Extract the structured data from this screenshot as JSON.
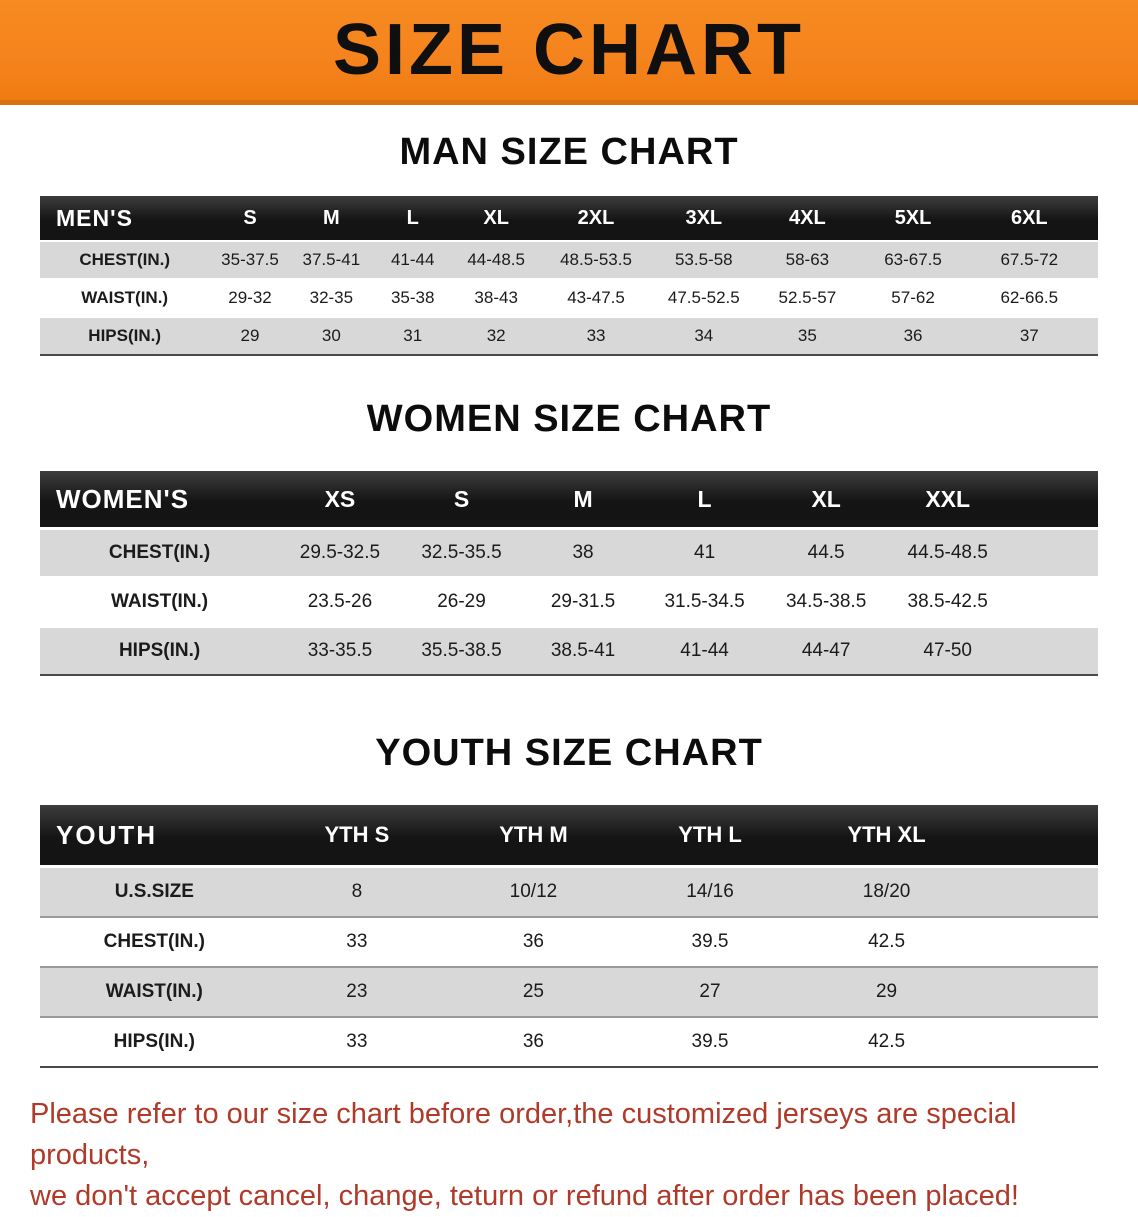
{
  "banner": {
    "title": "SIZE CHART"
  },
  "chart_data": [
    {
      "type": "table",
      "title": "MAN SIZE CHART",
      "columns": [
        "MEN'S",
        "S",
        "M",
        "L",
        "XL",
        "2XL",
        "3XL",
        "4XL",
        "5XL",
        "6XL"
      ],
      "rows": [
        [
          "CHEST(IN.)",
          "35-37.5",
          "37.5-41",
          "41-44",
          "44-48.5",
          "48.5-53.5",
          "53.5-58",
          "58-63",
          "63-67.5",
          "67.5-72"
        ],
        [
          "WAIST(IN.)",
          "29-32",
          "32-35",
          "35-38",
          "38-43",
          "43-47.5",
          "47.5-52.5",
          "52.5-57",
          "57-62",
          "62-66.5"
        ],
        [
          "HIPS(IN.)",
          "29",
          "30",
          "31",
          "32",
          "33",
          "34",
          "35",
          "36",
          "37"
        ]
      ],
      "filler": true
    },
    {
      "type": "table",
      "title": "WOMEN SIZE CHART",
      "columns": [
        "WOMEN'S",
        "XS",
        "S",
        "M",
        "L",
        "XL",
        "XXL"
      ],
      "rows": [
        [
          "CHEST(IN.)",
          "29.5-32.5",
          "32.5-35.5",
          "38",
          "41",
          "44.5",
          "44.5-48.5"
        ],
        [
          "WAIST(IN.)",
          "23.5-26",
          "26-29",
          "29-31.5",
          "31.5-34.5",
          "34.5-38.5",
          "38.5-42.5"
        ],
        [
          "HIPS(IN.)",
          "33-35.5",
          "35.5-38.5",
          "38.5-41",
          "41-44",
          "44-47",
          "47-50"
        ]
      ],
      "filler": true
    },
    {
      "type": "table",
      "title": "YOUTH SIZE CHART",
      "columns": [
        "YOUTH",
        "YTH S",
        "YTH M",
        "YTH L",
        "YTH XL"
      ],
      "rows": [
        [
          "U.S.SIZE",
          "8",
          "10/12",
          "14/16",
          "18/20"
        ],
        [
          "CHEST(IN.)",
          "33",
          "36",
          "39.5",
          "42.5"
        ],
        [
          "WAIST(IN.)",
          "23",
          "25",
          "27",
          "29"
        ],
        [
          "HIPS(IN.)",
          "33",
          "36",
          "39.5",
          "42.5"
        ]
      ],
      "filler": true
    }
  ],
  "footer": {
    "lines": [
      "Please refer to our size chart before order,the customized jerseys are special products,",
      "we don't accept cancel, change, teturn or refund after order has been placed!"
    ]
  },
  "colors": {
    "banner_bg": "#f5831d",
    "table_header_bg": "#141414",
    "row_shade": "#d8d8d8",
    "footer_text": "#b03a2a"
  }
}
